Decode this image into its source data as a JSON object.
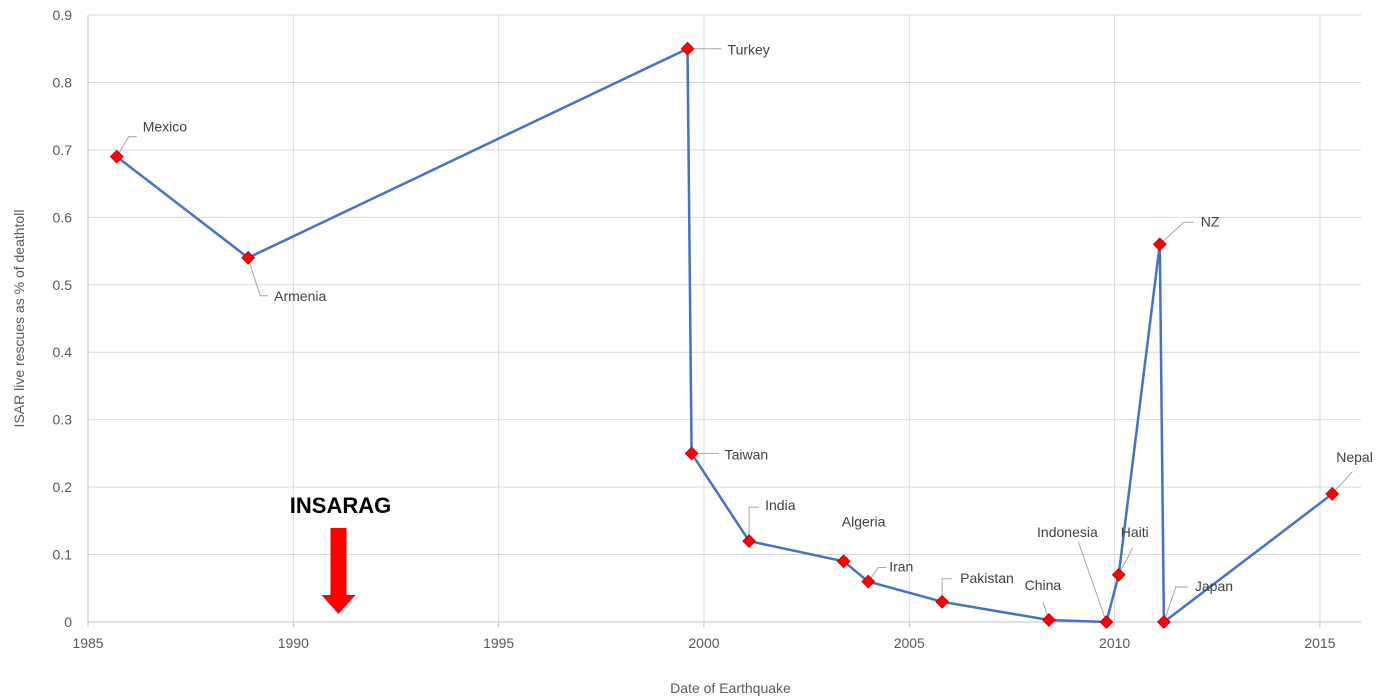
{
  "chart_data": {
    "type": "line",
    "title": "",
    "xlabel": "Date of Earthquake",
    "ylabel": "ISAR live rescues as % of deathtoll",
    "xlim": [
      1985,
      2016
    ],
    "ylim": [
      0,
      0.9
    ],
    "x_ticks": [
      "1985",
      "1990",
      "1995",
      "2000",
      "2005",
      "2010",
      "2015"
    ],
    "y_ticks": [
      "0",
      "0.1",
      "0.2",
      "0.3",
      "0.4",
      "0.5",
      "0.6",
      "0.7",
      "0.8",
      "0.9"
    ],
    "grid": true,
    "series": [
      {
        "color": "#4472C4",
        "marker_color": "#FF0000",
        "points": [
          {
            "label": "Mexico",
            "x": 1985.7,
            "y": 0.69
          },
          {
            "label": "Armenia",
            "x": 1988.9,
            "y": 0.54
          },
          {
            "label": "Turkey",
            "x": 1999.6,
            "y": 0.85
          },
          {
            "label": "Taiwan",
            "x": 1999.7,
            "y": 0.25
          },
          {
            "label": "India",
            "x": 2001.1,
            "y": 0.12
          },
          {
            "label": "Algeria",
            "x": 2003.4,
            "y": 0.09
          },
          {
            "label": "Iran",
            "x": 2004.0,
            "y": 0.06
          },
          {
            "label": "Pakistan",
            "x": 2005.8,
            "y": 0.03
          },
          {
            "label": "China",
            "x": 2008.4,
            "y": 0.003
          },
          {
            "label": "Indonesia",
            "x": 2009.8,
            "y": 0.0
          },
          {
            "label": "Haiti",
            "x": 2010.1,
            "y": 0.07
          },
          {
            "label": "NZ",
            "x": 2011.1,
            "y": 0.56
          },
          {
            "label": "Japan",
            "x": 2011.2,
            "y": 0.0
          },
          {
            "label": "Nepal",
            "x": 2015.3,
            "y": 0.19
          }
        ]
      }
    ],
    "annotations": [
      {
        "text": "INSARAG",
        "x": 1991.1,
        "arrow_color": "#FF0000"
      }
    ]
  }
}
